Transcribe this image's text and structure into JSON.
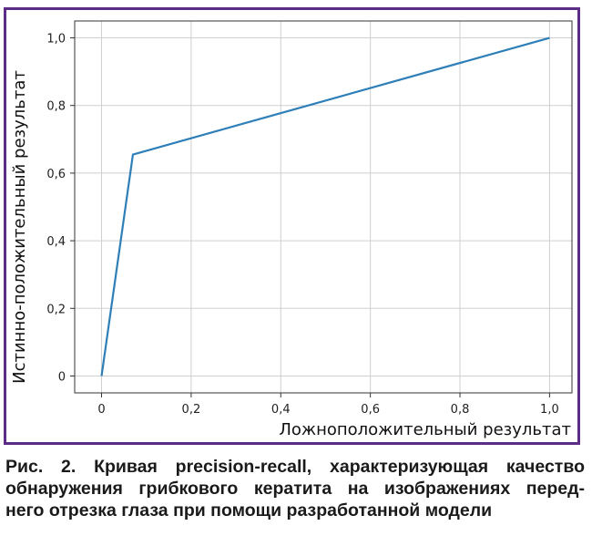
{
  "chart_data": {
    "type": "line",
    "xlabel": "Ложноположительный результат",
    "ylabel": "Истинно-положительный результат",
    "xlim": [
      -0.06,
      1.05
    ],
    "ylim": [
      -0.05,
      1.05
    ],
    "x_ticks": [
      0,
      0.2,
      0.4,
      0.6,
      0.8,
      1.0
    ],
    "x_tick_labels": [
      "0",
      "0,2",
      "0,4",
      "0,6",
      "0,8",
      "1,0"
    ],
    "y_ticks": [
      0,
      0.2,
      0.4,
      0.6,
      0.8,
      1.0
    ],
    "y_tick_labels": [
      "0",
      "0,2",
      "0,4",
      "0,6",
      "0,8",
      "1,0"
    ],
    "grid": true,
    "series": [
      {
        "color": "#2e7fb8",
        "x": [
          0,
          0.07,
          1.0
        ],
        "y": [
          0,
          0.655,
          1.0
        ]
      }
    ]
  },
  "frame_color": "#5b2d86",
  "caption_lines": [
    "Рис. 2. Кривая precision-recall, характеризующая качество",
    "обнаружения грибкового кератита на изображениях перед-",
    "него отрезка глаза при помощи разработанной модели"
  ]
}
